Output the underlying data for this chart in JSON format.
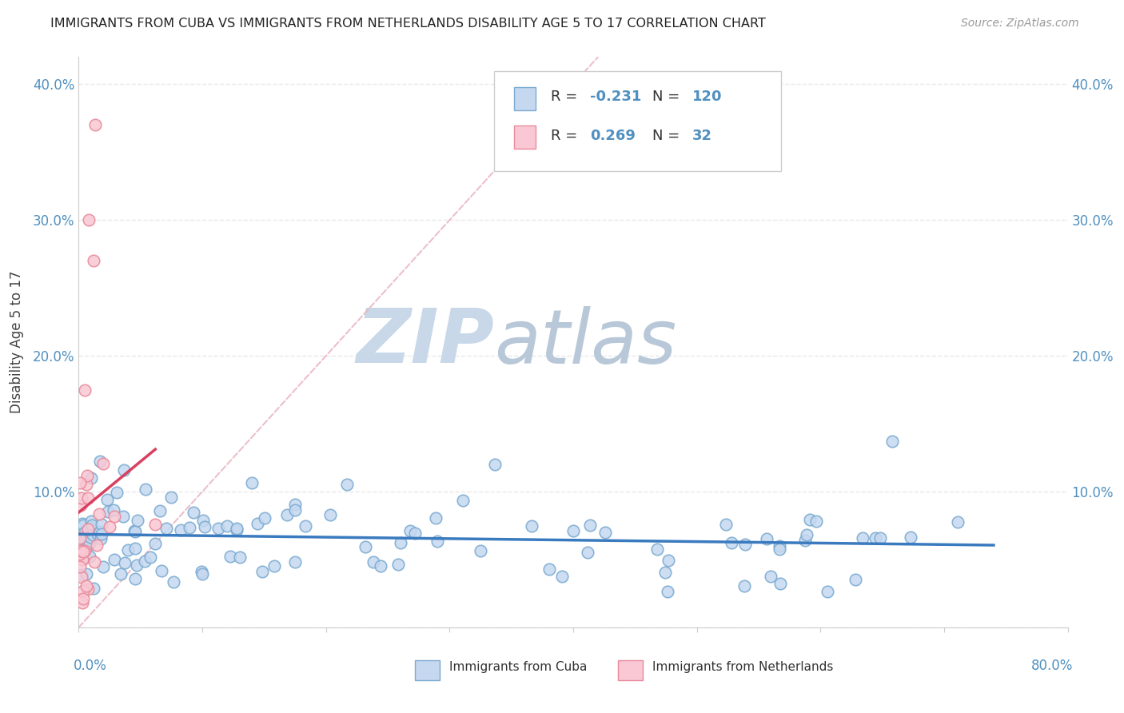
{
  "title": "IMMIGRANTS FROM CUBA VS IMMIGRANTS FROM NETHERLANDS DISABILITY AGE 5 TO 17 CORRELATION CHART",
  "source": "Source: ZipAtlas.com",
  "ylabel": "Disability Age 5 to 17",
  "xmin": 0.0,
  "xmax": 0.8,
  "ymin": 0.0,
  "ymax": 0.42,
  "r_cuba": -0.231,
  "n_cuba": 120,
  "r_netherlands": 0.269,
  "n_netherlands": 32,
  "color_cuba_fill": "#c5d8f0",
  "color_cuba_edge": "#7aaad0",
  "color_netherlands_fill": "#f9c8d4",
  "color_netherlands_edge": "#e88a9a",
  "color_line_cuba": "#3a7abf",
  "color_line_netherlands": "#d94060",
  "color_diag": "#e8b0bc",
  "watermark_main": "#c8d8e8",
  "watermark_atlas": "#b8c8d8",
  "background_color": "#ffffff",
  "grid_color": "#e8e8e8",
  "tick_color": "#5090c0",
  "legend_r1": "R = -0.231  N = 120",
  "legend_r2": "R =  0.269  N =  32",
  "label_cuba": "Immigrants from Cuba",
  "label_neth": "Immigrants from Netherlands"
}
